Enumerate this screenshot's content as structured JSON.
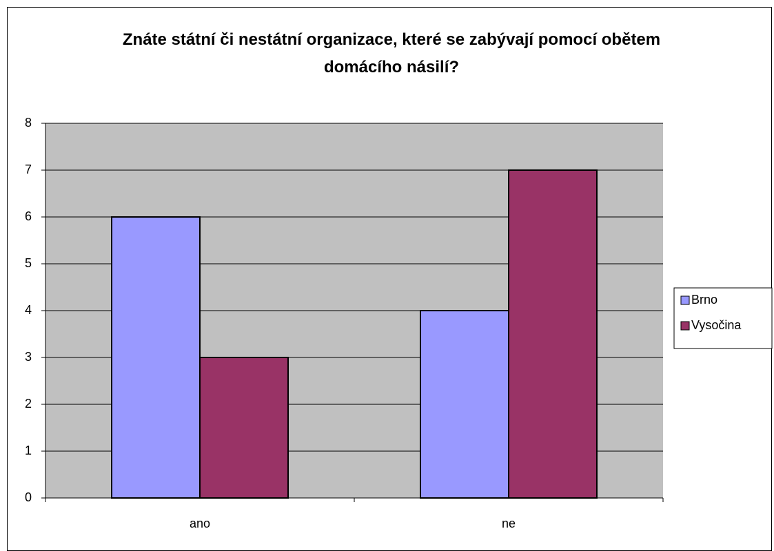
{
  "chart_data": {
    "type": "bar",
    "title": "Znáte státní či nestátní organizace, které se zabývají pomocí obětem domácího násilí?",
    "categories": [
      "ano",
      "ne"
    ],
    "series": [
      {
        "name": "Brno",
        "color": "#9999ff",
        "values": [
          6,
          4
        ]
      },
      {
        "name": "Vysočina",
        "color": "#993366",
        "values": [
          3,
          7
        ]
      }
    ],
    "ylim": [
      0,
      8
    ],
    "yticks": [
      0,
      1,
      2,
      3,
      4,
      5,
      6,
      7,
      8
    ],
    "grid": true,
    "legend": "right"
  }
}
